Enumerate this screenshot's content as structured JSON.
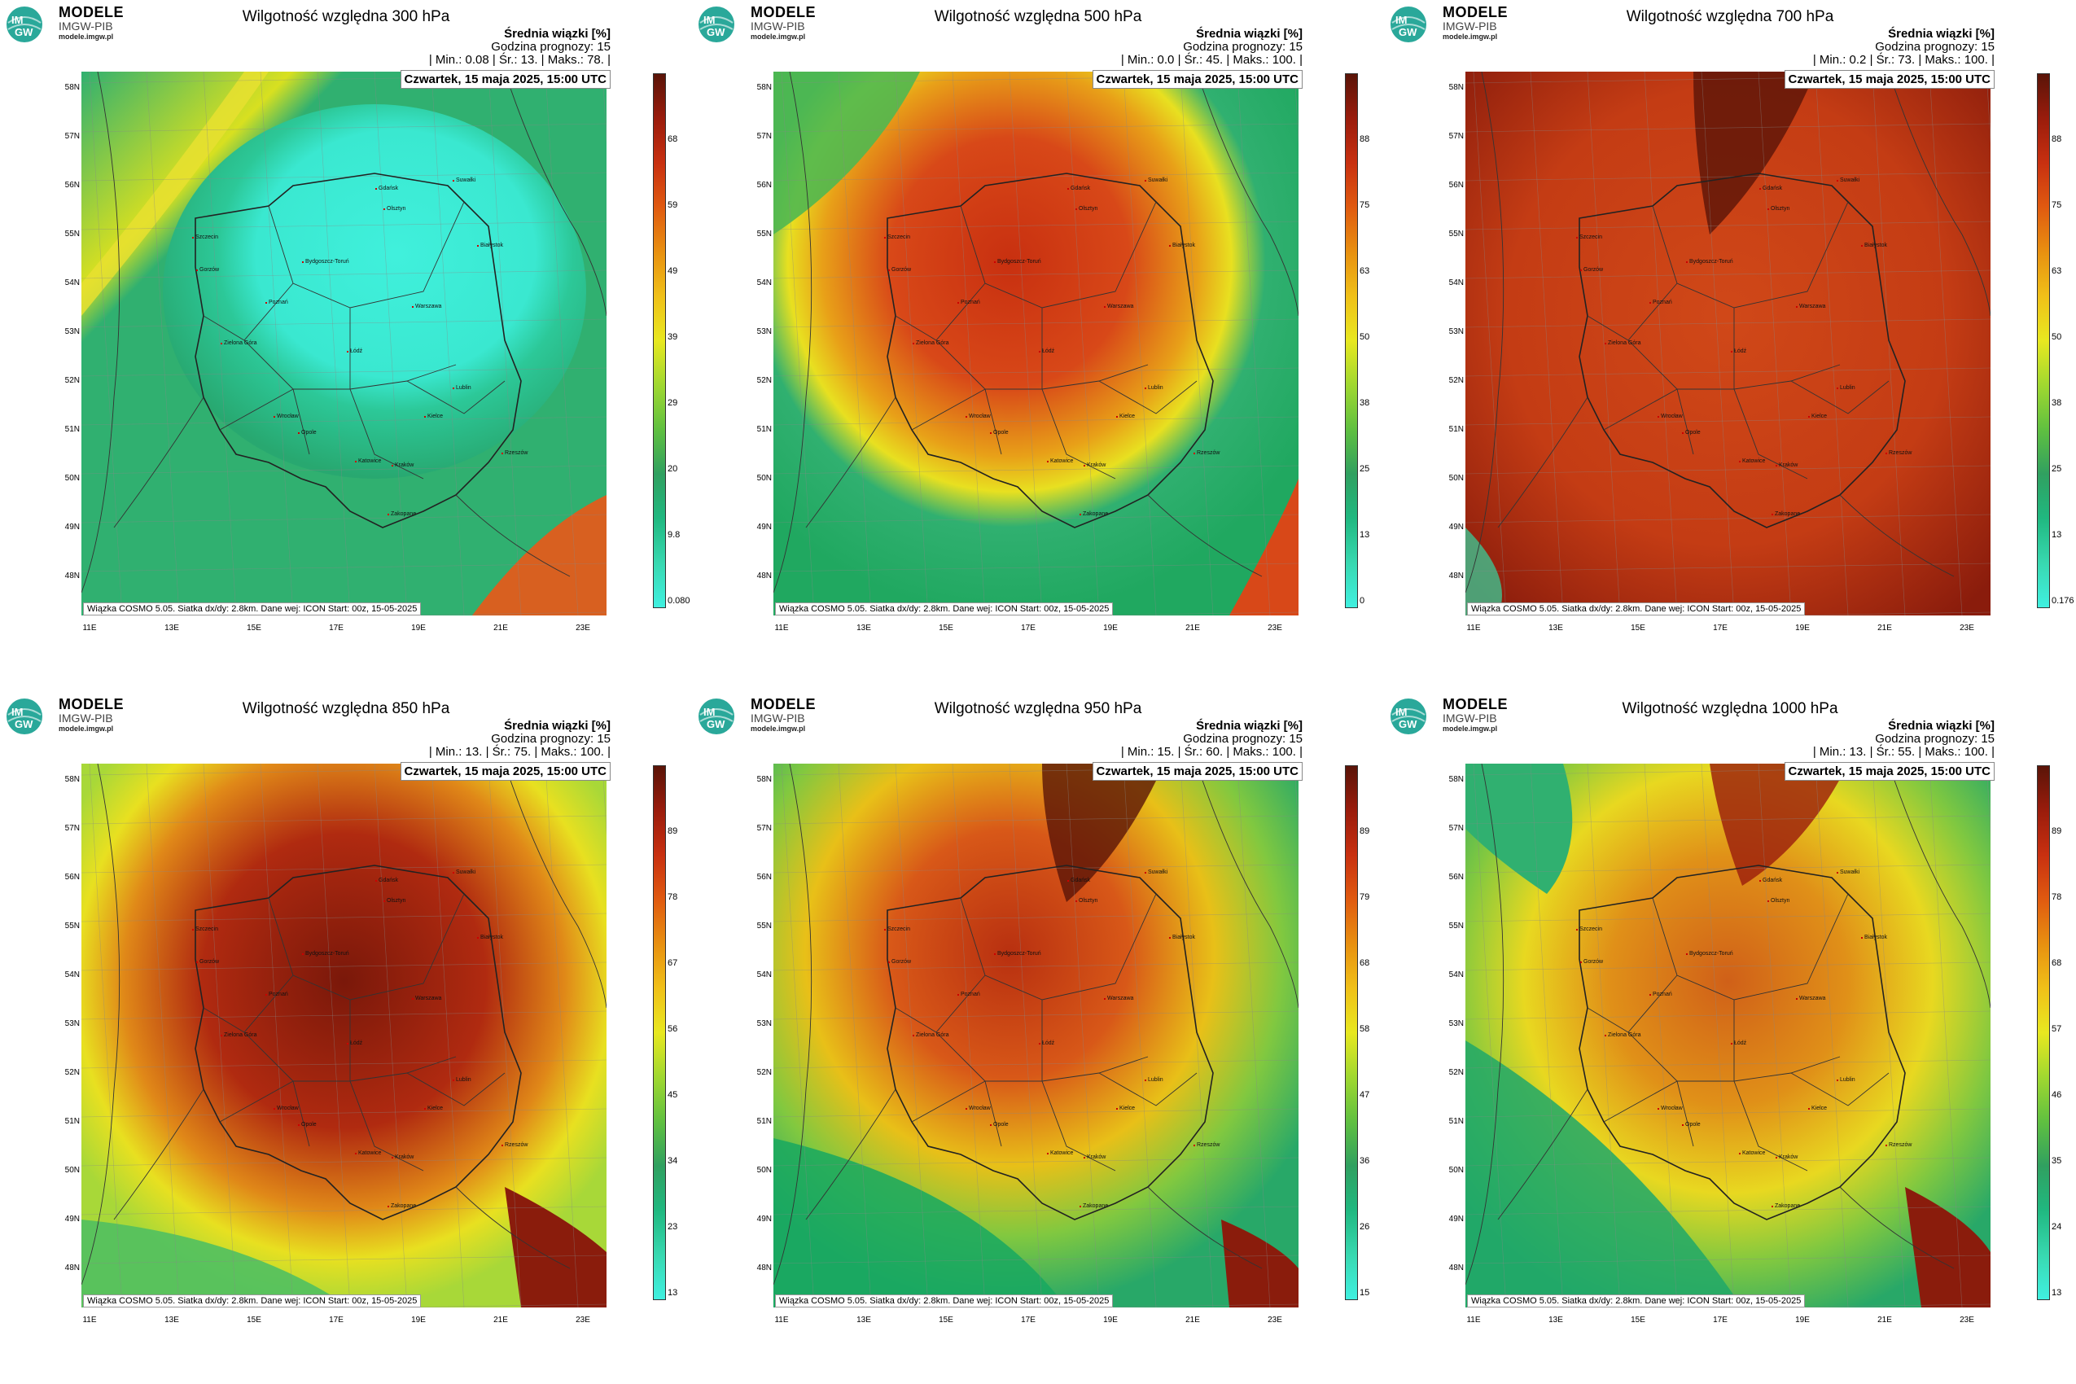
{
  "brand": {
    "name": "MODELE",
    "org": "IMGW-PIB",
    "url": "modele.imgw.pl",
    "logo_text_top": "IM",
    "logo_text_bottom": "GW"
  },
  "stats_header": "Średnia wiązki [%]",
  "forecast_hour_label": "Godzina prognozy: 15",
  "date": "Czwartek, 15 maja 2025, 15:00 UTC",
  "footer": "Wiązka COSMO 5.05. Siatka dx/dy: 2.8km. Dane wej: ICON Start: 00z, 15-05-2025",
  "lat_labels": [
    "58N",
    "57N",
    "56N",
    "55N",
    "54N",
    "53N",
    "52N",
    "51N",
    "50N",
    "49N",
    "48N"
  ],
  "lon_labels": [
    "11E",
    "13E",
    "15E",
    "17E",
    "19E",
    "21E",
    "23E"
  ],
  "cities": [
    "Gdańsk",
    "Olsztyn",
    "Szczecin",
    "Białystok",
    "Bydgoszcz-Toruń",
    "Gorzów",
    "Poznań",
    "Warszawa",
    "Zielona Góra",
    "Łódź",
    "Lublin",
    "Wrocław",
    "Kielce",
    "Opole",
    "Katowice",
    "Kraków",
    "Rzeszów",
    "Zakopane",
    "Suwałki"
  ],
  "panels": [
    {
      "title": "Wilgotność względna 300 hPa",
      "stats": "| Min.:   0.08 | Śr.:     13. | Maks.:    78. |",
      "ticks": [
        "0.080",
        "9.8",
        "20",
        "29",
        "39",
        "49",
        "59",
        "68"
      ],
      "palette": "p300"
    },
    {
      "title": "Wilgotność względna 500 hPa",
      "stats": "| Min.:     0.0 | Śr.:     45. | Maks.:   100. |",
      "ticks": [
        "0",
        "13",
        "25",
        "38",
        "50",
        "63",
        "75",
        "88"
      ],
      "palette": "p500"
    },
    {
      "title": "Wilgotność względna 700 hPa",
      "stats": "| Min.:     0.2 | Śr.:     73. | Maks.:   100. |",
      "ticks": [
        "0.176",
        "13",
        "25",
        "38",
        "50",
        "63",
        "75",
        "88"
      ],
      "palette": "p700"
    },
    {
      "title": "Wilgotność względna 850 hPa",
      "stats": "| Min.:     13. | Śr.:     75. | Maks.:   100. |",
      "ticks": [
        "13",
        "23",
        "34",
        "45",
        "56",
        "67",
        "78",
        "89"
      ],
      "palette": "p850"
    },
    {
      "title": "Wilgotność względna 950 hPa",
      "stats": "| Min.:     15. | Śr.:     60. | Maks.:   100. |",
      "ticks": [
        "15",
        "26",
        "36",
        "47",
        "58",
        "68",
        "79",
        "89"
      ],
      "palette": "p950"
    },
    {
      "title": "Wilgotność względna 1000 hPa",
      "stats": "| Min.:     13. | Śr.:     55. | Maks.:   100. |",
      "ticks": [
        "13",
        "24",
        "35",
        "46",
        "57",
        "68",
        "78",
        "89"
      ],
      "palette": "p1000"
    }
  ]
}
